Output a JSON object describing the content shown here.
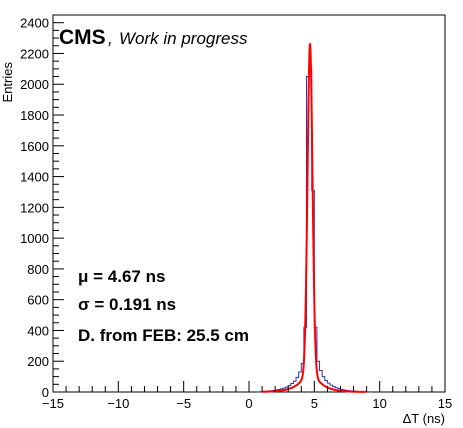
{
  "chart_data": {
    "type": "histogram",
    "xlabel": "ΔT (ns)",
    "ylabel": "Entries",
    "xlim": [
      -15,
      15
    ],
    "ylim": [
      0,
      2450
    ],
    "x_ticks": [
      "−15",
      "−10",
      "−5",
      "0",
      "5",
      "10",
      "15"
    ],
    "y_ticks": [
      "0",
      "200",
      "400",
      "600",
      "800",
      "1000",
      "1200",
      "1400",
      "1600",
      "1800",
      "2000",
      "2200",
      "2400"
    ],
    "label": {
      "experiment": "CMS",
      "status": "Work in progress"
    },
    "annotations": [
      "μ = 4.67 ns",
      "σ = 0.191 ns",
      "D. from FEB: 25.5 cm"
    ],
    "bin_width": 0.2,
    "bins_start": 0.6,
    "bins": [
      {
        "x": 0.6,
        "y": 1
      },
      {
        "x": 0.8,
        "y": 2
      },
      {
        "x": 1.0,
        "y": 3
      },
      {
        "x": 1.2,
        "y": 4
      },
      {
        "x": 1.4,
        "y": 6
      },
      {
        "x": 1.6,
        "y": 8
      },
      {
        "x": 1.8,
        "y": 10
      },
      {
        "x": 2.0,
        "y": 13
      },
      {
        "x": 2.2,
        "y": 16
      },
      {
        "x": 2.4,
        "y": 20
      },
      {
        "x": 2.6,
        "y": 25
      },
      {
        "x": 2.8,
        "y": 32
      },
      {
        "x": 3.0,
        "y": 42
      },
      {
        "x": 3.2,
        "y": 55
      },
      {
        "x": 3.4,
        "y": 70
      },
      {
        "x": 3.6,
        "y": 95
      },
      {
        "x": 3.8,
        "y": 130
      },
      {
        "x": 4.0,
        "y": 185
      },
      {
        "x": 4.2,
        "y": 420
      },
      {
        "x": 4.4,
        "y": 2050
      },
      {
        "x": 4.6,
        "y": 2110
      },
      {
        "x": 4.8,
        "y": 1310
      },
      {
        "x": 5.0,
        "y": 420
      },
      {
        "x": 5.2,
        "y": 200
      },
      {
        "x": 5.4,
        "y": 140
      },
      {
        "x": 5.6,
        "y": 100
      },
      {
        "x": 5.8,
        "y": 75
      },
      {
        "x": 6.0,
        "y": 58
      },
      {
        "x": 6.2,
        "y": 45
      },
      {
        "x": 6.4,
        "y": 35
      },
      {
        "x": 6.6,
        "y": 28
      },
      {
        "x": 6.8,
        "y": 22
      },
      {
        "x": 7.0,
        "y": 17
      },
      {
        "x": 7.2,
        "y": 13
      },
      {
        "x": 7.4,
        "y": 10
      },
      {
        "x": 7.6,
        "y": 8
      },
      {
        "x": 7.8,
        "y": 6
      },
      {
        "x": 8.0,
        "y": 5
      },
      {
        "x": 8.2,
        "y": 4
      },
      {
        "x": 8.4,
        "y": 3
      },
      {
        "x": 8.6,
        "y": 2
      },
      {
        "x": 8.8,
        "y": 2
      },
      {
        "x": 9.0,
        "y": 1
      },
      {
        "x": 9.2,
        "y": 1
      }
    ],
    "fit": {
      "type": "gaussian-core-with-tails",
      "mean": 4.67,
      "sigma": 0.191,
      "peak": 2090
    },
    "colors": {
      "histogram": "#3b2fa8",
      "fit": "#ff0000",
      "axes": "#000000"
    }
  }
}
